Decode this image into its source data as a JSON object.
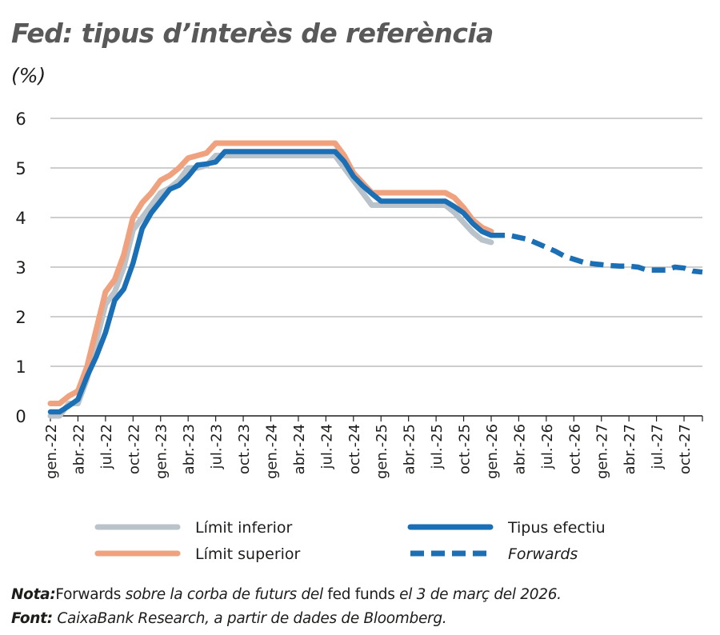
{
  "title": "Fed: tipus d’interès de referència",
  "unit": "(%)",
  "note": {
    "label": "Nota:",
    "p1": "Forwards",
    "p2": " sobre la corba de futurs del ",
    "p3": "fed funds",
    "p4": " el 3 de març del 2026."
  },
  "source": {
    "label": "Font:",
    "text": " CaixaBank Research, a partir de dades de Bloomberg."
  },
  "colors": {
    "lower": "#b9c3c9",
    "upper": "#f0a17e",
    "effective": "#1b6fb5",
    "grid": "#9d9d9c"
  },
  "chart_data": {
    "type": "line",
    "ylim": [
      0,
      6
    ],
    "yticks": [
      0,
      1,
      2,
      3,
      4,
      5,
      6
    ],
    "x_months": [
      "2022-01",
      "2022-02",
      "2022-03",
      "2022-04",
      "2022-05",
      "2022-06",
      "2022-07",
      "2022-08",
      "2022-09",
      "2022-10",
      "2022-11",
      "2022-12",
      "2023-01",
      "2023-02",
      "2023-03",
      "2023-04",
      "2023-05",
      "2023-06",
      "2023-07",
      "2023-08",
      "2023-09",
      "2023-10",
      "2023-11",
      "2023-12",
      "2024-01",
      "2024-02",
      "2024-03",
      "2024-04",
      "2024-05",
      "2024-06",
      "2024-07",
      "2024-08",
      "2024-09",
      "2024-10",
      "2024-11",
      "2024-12",
      "2025-01",
      "2025-02",
      "2025-03",
      "2025-04",
      "2025-05",
      "2025-06",
      "2025-07",
      "2025-08",
      "2025-09",
      "2025-10",
      "2025-11",
      "2025-12",
      "2026-01",
      "2026-02",
      "2026-03",
      "2026-04",
      "2026-05",
      "2026-06",
      "2026-07",
      "2026-08",
      "2026-09",
      "2026-10",
      "2026-11",
      "2026-12",
      "2027-01",
      "2027-02",
      "2027-03",
      "2027-04",
      "2027-05",
      "2027-06",
      "2027-07",
      "2027-08",
      "2027-09",
      "2027-10",
      "2027-11",
      "2027-12"
    ],
    "x_tick_labels": [
      {
        "month": "2022-01",
        "label": "gen.-22"
      },
      {
        "month": "2022-04",
        "label": "abr.-22"
      },
      {
        "month": "2022-07",
        "label": "jul.-22"
      },
      {
        "month": "2022-10",
        "label": "oct.-22"
      },
      {
        "month": "2023-01",
        "label": "gen.-23"
      },
      {
        "month": "2023-04",
        "label": "abr.-23"
      },
      {
        "month": "2023-07",
        "label": "jul.-23"
      },
      {
        "month": "2023-10",
        "label": "oct.-23"
      },
      {
        "month": "2024-01",
        "label": "gen.-24"
      },
      {
        "month": "2024-04",
        "label": "abr.-24"
      },
      {
        "month": "2024-07",
        "label": "jul.-24"
      },
      {
        "month": "2024-10",
        "label": "oct.-24"
      },
      {
        "month": "2025-01",
        "label": "gen.-25"
      },
      {
        "month": "2025-04",
        "label": "abr.-25"
      },
      {
        "month": "2025-07",
        "label": "jul.-25"
      },
      {
        "month": "2025-10",
        "label": "oct.-25"
      },
      {
        "month": "2026-01",
        "label": "gen.-26"
      },
      {
        "month": "2026-04",
        "label": "abr.-26"
      },
      {
        "month": "2026-07",
        "label": "jul.-26"
      },
      {
        "month": "2026-10",
        "label": "oct.-26"
      },
      {
        "month": "2027-01",
        "label": "gen.-27"
      },
      {
        "month": "2027-04",
        "label": "abr.-27"
      },
      {
        "month": "2027-07",
        "label": "jul.-27"
      },
      {
        "month": "2027-10",
        "label": "oct.-27"
      }
    ],
    "series": [
      {
        "name": "Límit inferior",
        "style": "solid",
        "color": "#b9c3c9",
        "points": [
          [
            "2022-01",
            0.0
          ],
          [
            "2022-02",
            0.0
          ],
          [
            "2022-03",
            0.25
          ],
          [
            "2022-04",
            0.25
          ],
          [
            "2022-05",
            0.75
          ],
          [
            "2022-06",
            1.5
          ],
          [
            "2022-07",
            2.25
          ],
          [
            "2022-08",
            2.5
          ],
          [
            "2022-09",
            3.0
          ],
          [
            "2022-10",
            3.75
          ],
          [
            "2022-11",
            4.0
          ],
          [
            "2022-12",
            4.25
          ],
          [
            "2023-01",
            4.5
          ],
          [
            "2023-02",
            4.6
          ],
          [
            "2023-03",
            4.75
          ],
          [
            "2023-04",
            5.0
          ],
          [
            "2023-05",
            5.0
          ],
          [
            "2023-06",
            5.05
          ],
          [
            "2023-07",
            5.25
          ],
          [
            "2023-08",
            5.25
          ],
          [
            "2023-09",
            5.25
          ],
          [
            "2023-10",
            5.25
          ],
          [
            "2023-11",
            5.25
          ],
          [
            "2023-12",
            5.25
          ],
          [
            "2024-01",
            5.25
          ],
          [
            "2024-02",
            5.25
          ],
          [
            "2024-03",
            5.25
          ],
          [
            "2024-04",
            5.25
          ],
          [
            "2024-05",
            5.25
          ],
          [
            "2024-06",
            5.25
          ],
          [
            "2024-07",
            5.25
          ],
          [
            "2024-08",
            5.25
          ],
          [
            "2024-09",
            5.0
          ],
          [
            "2024-10",
            4.75
          ],
          [
            "2024-11",
            4.5
          ],
          [
            "2024-12",
            4.25
          ],
          [
            "2025-01",
            4.25
          ],
          [
            "2025-02",
            4.25
          ],
          [
            "2025-03",
            4.25
          ],
          [
            "2025-04",
            4.25
          ],
          [
            "2025-05",
            4.25
          ],
          [
            "2025-06",
            4.25
          ],
          [
            "2025-07",
            4.25
          ],
          [
            "2025-08",
            4.25
          ],
          [
            "2025-09",
            4.1
          ],
          [
            "2025-10",
            3.9
          ],
          [
            "2025-11",
            3.7
          ],
          [
            "2025-12",
            3.55
          ],
          [
            "2026-01",
            3.5
          ]
        ]
      },
      {
        "name": "Límit superior",
        "style": "solid",
        "color": "#f0a17e",
        "points": [
          [
            "2022-01",
            0.25
          ],
          [
            "2022-02",
            0.25
          ],
          [
            "2022-03",
            0.4
          ],
          [
            "2022-04",
            0.5
          ],
          [
            "2022-05",
            1.0
          ],
          [
            "2022-06",
            1.75
          ],
          [
            "2022-07",
            2.5
          ],
          [
            "2022-08",
            2.75
          ],
          [
            "2022-09",
            3.25
          ],
          [
            "2022-10",
            4.0
          ],
          [
            "2022-11",
            4.3
          ],
          [
            "2022-12",
            4.5
          ],
          [
            "2023-01",
            4.75
          ],
          [
            "2023-02",
            4.85
          ],
          [
            "2023-03",
            5.0
          ],
          [
            "2023-04",
            5.2
          ],
          [
            "2023-05",
            5.25
          ],
          [
            "2023-06",
            5.3
          ],
          [
            "2023-07",
            5.5
          ],
          [
            "2023-08",
            5.5
          ],
          [
            "2023-09",
            5.5
          ],
          [
            "2023-10",
            5.5
          ],
          [
            "2023-11",
            5.5
          ],
          [
            "2023-12",
            5.5
          ],
          [
            "2024-01",
            5.5
          ],
          [
            "2024-02",
            5.5
          ],
          [
            "2024-03",
            5.5
          ],
          [
            "2024-04",
            5.5
          ],
          [
            "2024-05",
            5.5
          ],
          [
            "2024-06",
            5.5
          ],
          [
            "2024-07",
            5.5
          ],
          [
            "2024-08",
            5.5
          ],
          [
            "2024-09",
            5.25
          ],
          [
            "2024-10",
            4.9
          ],
          [
            "2024-11",
            4.7
          ],
          [
            "2024-12",
            4.5
          ],
          [
            "2025-01",
            4.5
          ],
          [
            "2025-02",
            4.5
          ],
          [
            "2025-03",
            4.5
          ],
          [
            "2025-04",
            4.5
          ],
          [
            "2025-05",
            4.5
          ],
          [
            "2025-06",
            4.5
          ],
          [
            "2025-07",
            4.5
          ],
          [
            "2025-08",
            4.5
          ],
          [
            "2025-09",
            4.4
          ],
          [
            "2025-10",
            4.2
          ],
          [
            "2025-11",
            3.95
          ],
          [
            "2025-12",
            3.8
          ],
          [
            "2026-01",
            3.72
          ]
        ]
      },
      {
        "name": "Tipus efectiu",
        "style": "solid",
        "color": "#1b6fb5",
        "points": [
          [
            "2022-01",
            0.08
          ],
          [
            "2022-02",
            0.08
          ],
          [
            "2022-03",
            0.2
          ],
          [
            "2022-04",
            0.33
          ],
          [
            "2022-05",
            0.8
          ],
          [
            "2022-06",
            1.2
          ],
          [
            "2022-07",
            1.68
          ],
          [
            "2022-08",
            2.33
          ],
          [
            "2022-09",
            2.56
          ],
          [
            "2022-10",
            3.08
          ],
          [
            "2022-11",
            3.78
          ],
          [
            "2022-12",
            4.1
          ],
          [
            "2023-01",
            4.33
          ],
          [
            "2023-02",
            4.57
          ],
          [
            "2023-03",
            4.65
          ],
          [
            "2023-04",
            4.83
          ],
          [
            "2023-05",
            5.06
          ],
          [
            "2023-06",
            5.08
          ],
          [
            "2023-07",
            5.12
          ],
          [
            "2023-08",
            5.33
          ],
          [
            "2023-09",
            5.33
          ],
          [
            "2023-10",
            5.33
          ],
          [
            "2023-11",
            5.33
          ],
          [
            "2023-12",
            5.33
          ],
          [
            "2024-01",
            5.33
          ],
          [
            "2024-02",
            5.33
          ],
          [
            "2024-03",
            5.33
          ],
          [
            "2024-04",
            5.33
          ],
          [
            "2024-05",
            5.33
          ],
          [
            "2024-06",
            5.33
          ],
          [
            "2024-07",
            5.33
          ],
          [
            "2024-08",
            5.33
          ],
          [
            "2024-09",
            5.13
          ],
          [
            "2024-10",
            4.83
          ],
          [
            "2024-11",
            4.64
          ],
          [
            "2024-12",
            4.48
          ],
          [
            "2025-01",
            4.33
          ],
          [
            "2025-02",
            4.33
          ],
          [
            "2025-03",
            4.33
          ],
          [
            "2025-04",
            4.33
          ],
          [
            "2025-05",
            4.33
          ],
          [
            "2025-06",
            4.33
          ],
          [
            "2025-07",
            4.33
          ],
          [
            "2025-08",
            4.33
          ],
          [
            "2025-09",
            4.22
          ],
          [
            "2025-10",
            4.09
          ],
          [
            "2025-11",
            3.88
          ],
          [
            "2025-12",
            3.72
          ],
          [
            "2026-01",
            3.64
          ]
        ]
      },
      {
        "name": "Forwards",
        "style": "dashed",
        "color": "#1b6fb5",
        "points": [
          [
            "2026-01",
            3.64
          ],
          [
            "2026-02",
            3.64
          ],
          [
            "2026-03",
            3.64
          ],
          [
            "2026-04",
            3.6
          ],
          [
            "2026-05",
            3.56
          ],
          [
            "2026-06",
            3.48
          ],
          [
            "2026-07",
            3.4
          ],
          [
            "2026-08",
            3.32
          ],
          [
            "2026-09",
            3.22
          ],
          [
            "2026-10",
            3.16
          ],
          [
            "2026-11",
            3.1
          ],
          [
            "2026-12",
            3.07
          ],
          [
            "2027-01",
            3.05
          ],
          [
            "2027-02",
            3.03
          ],
          [
            "2027-03",
            3.02
          ],
          [
            "2027-04",
            3.02
          ],
          [
            "2027-05",
            3.0
          ],
          [
            "2027-06",
            2.94
          ],
          [
            "2027-07",
            2.94
          ],
          [
            "2027-08",
            2.94
          ],
          [
            "2027-09",
            3.0
          ],
          [
            "2027-10",
            2.98
          ],
          [
            "2027-11",
            2.92
          ],
          [
            "2027-12",
            2.9
          ]
        ]
      }
    ],
    "legend": {
      "placement": "bottom",
      "items": [
        "Límit inferior",
        "Tipus efectiu",
        "Límit superior",
        "Forwards"
      ]
    }
  }
}
